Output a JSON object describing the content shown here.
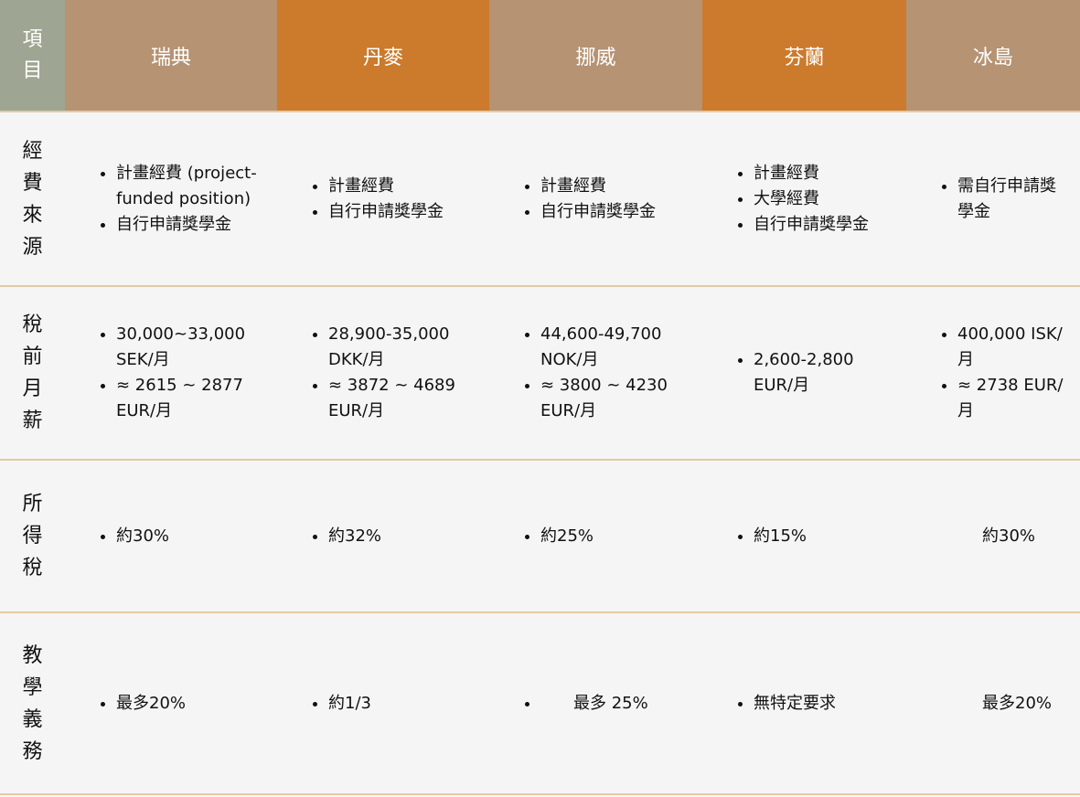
{
  "colors": {
    "label_header": "#9ea592",
    "header_tan": "#b59373",
    "header_orange": "#cc7a2b",
    "border": "#e2cba4",
    "background": "#f5f5f5"
  },
  "header": {
    "item": "項目",
    "countries": [
      "瑞典",
      "丹麥",
      "挪威",
      "芬蘭",
      "冰島"
    ]
  },
  "rows": [
    {
      "label": "經費來源",
      "cells": [
        {
          "items": [
            "計畫經費 (project-funded position)",
            "自行申請獎學金"
          ]
        },
        {
          "items": [
            "計畫經費",
            "自行申請獎學金"
          ]
        },
        {
          "items": [
            "計畫經費",
            "自行申請獎學金"
          ]
        },
        {
          "items": [
            "計畫經費",
            "大學經費",
            "自行申請獎學金"
          ]
        },
        {
          "items": [
            "需自行申請獎學金"
          ]
        }
      ]
    },
    {
      "label": "稅前月薪",
      "cells": [
        {
          "items": [
            "30,000~33,000 SEK/月",
            "≈ 2615 ~ 2877 EUR/月"
          ]
        },
        {
          "items": [
            "28,900-35,000 DKK/月",
            "≈ 3872 ~ 4689 EUR/月"
          ]
        },
        {
          "items": [
            "44,600-49,700 NOK/月",
            "≈ 3800 ~ 4230 EUR/月"
          ]
        },
        {
          "items": [
            "2,600-2,800 EUR/月"
          ]
        },
        {
          "items": [
            "400,000 ISK/月",
            "≈  2738 EUR/月"
          ]
        }
      ]
    },
    {
      "label": "所得稅",
      "cells": [
        {
          "items": [
            "約30%"
          ]
        },
        {
          "items": [
            "約32%"
          ]
        },
        {
          "items": [
            "約25%"
          ]
        },
        {
          "items": [
            "約15%"
          ]
        },
        {
          "text": "約30%"
        }
      ]
    },
    {
      "label": "教學義務",
      "cells": [
        {
          "items": [
            "最多20%"
          ]
        },
        {
          "items": [
            "約1/3"
          ]
        },
        {
          "items": [
            "　　最多 25%"
          ]
        },
        {
          "items": [
            "無特定要求"
          ]
        },
        {
          "text": "最多20%"
        }
      ]
    }
  ]
}
